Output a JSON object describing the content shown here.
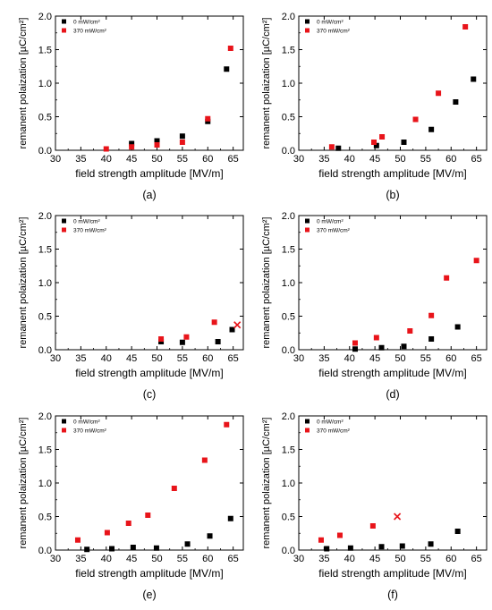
{
  "figure": {
    "panel_labels": [
      "(a)",
      "(b)",
      "(c)",
      "(d)",
      "(e)",
      "(f)"
    ]
  },
  "colors": {
    "series_0": "#000000",
    "series_370": "#e8141a"
  },
  "chart_data": [
    {
      "type": "scatter",
      "panel": "(a)",
      "xlabel": "field strength amplitude [MV/m]",
      "ylabel": "remanent polaization [µC/cm²]",
      "xlim": [
        30,
        67
      ],
      "ylim": [
        0,
        2.0
      ],
      "xticks": [
        "30",
        "35",
        "40",
        "45",
        "50",
        "55",
        "60",
        "65"
      ],
      "yticks": [
        "0.0",
        "0.5",
        "1.0",
        "1.5",
        "2.0"
      ],
      "grid": false,
      "legend_position": "top-left",
      "series": [
        {
          "name": "0 mW/cm²",
          "color": "#000000",
          "marker": "square",
          "points": [
            [
              45,
              0.1
            ],
            [
              50,
              0.14
            ],
            [
              55,
              0.21
            ],
            [
              60,
              0.43
            ],
            [
              63.7,
              1.21
            ]
          ]
        },
        {
          "name": "370 mW/cm²",
          "color": "#e8141a",
          "marker": "square",
          "points": [
            [
              40,
              0.02
            ],
            [
              45,
              0.05
            ],
            [
              50,
              0.08
            ],
            [
              55,
              0.12
            ],
            [
              60,
              0.47
            ],
            [
              64.5,
              1.52
            ]
          ]
        }
      ],
      "annotations": []
    },
    {
      "type": "scatter",
      "panel": "(b)",
      "xlabel": "field strength amplitude [MV/m]",
      "ylabel": "remanent polaization [µC/cm²]",
      "xlim": [
        30,
        67
      ],
      "ylim": [
        0,
        2.0
      ],
      "xticks": [
        "30",
        "35",
        "40",
        "45",
        "50",
        "55",
        "60",
        "65"
      ],
      "yticks": [
        "0.0",
        "0.5",
        "1.0",
        "1.5",
        "2.0"
      ],
      "grid": false,
      "legend_position": "top-left",
      "series": [
        {
          "name": "0 mW/cm²",
          "color": "#000000",
          "marker": "square",
          "points": [
            [
              37.8,
              0.03
            ],
            [
              45.3,
              0.07
            ],
            [
              50.7,
              0.12
            ],
            [
              56.1,
              0.31
            ],
            [
              60.9,
              0.72
            ],
            [
              64.4,
              1.06
            ]
          ]
        },
        {
          "name": "370 mW/cm²",
          "color": "#e8141a",
          "marker": "square",
          "points": [
            [
              36.5,
              0.05
            ],
            [
              44.8,
              0.12
            ],
            [
              46.4,
              0.2
            ],
            [
              53,
              0.46
            ],
            [
              57.5,
              0.85
            ],
            [
              62.8,
              1.84
            ]
          ]
        }
      ],
      "annotations": []
    },
    {
      "type": "scatter",
      "panel": "(c)",
      "xlabel": "field strength amplitude [MV/m]",
      "ylabel": "remanent polaization [µC/cm²]",
      "xlim": [
        30,
        67
      ],
      "ylim": [
        0,
        2.0
      ],
      "xticks": [
        "30",
        "35",
        "40",
        "45",
        "50",
        "55",
        "60",
        "65"
      ],
      "yticks": [
        "0.0",
        "0.5",
        "1.0",
        "1.5",
        "2.0"
      ],
      "grid": false,
      "legend_position": "top-left",
      "series": [
        {
          "name": "0 mW/cm²",
          "color": "#000000",
          "marker": "square",
          "points": [
            [
              50.8,
              0.12
            ],
            [
              55.0,
              0.11
            ],
            [
              62.0,
              0.12
            ],
            [
              64.8,
              0.3
            ]
          ]
        },
        {
          "name": "370 mW/cm²",
          "color": "#e8141a",
          "marker": "square",
          "points": [
            [
              50.8,
              0.16
            ],
            [
              55.8,
              0.19
            ],
            [
              61.3,
              0.41
            ]
          ]
        }
      ],
      "annotations": [
        {
          "marker": "cross",
          "color": "#e8141a",
          "point": [
            65.8,
            0.37
          ]
        }
      ]
    },
    {
      "type": "scatter",
      "panel": "(d)",
      "xlabel": "field strength amplitude [MV/m]",
      "ylabel": "remanent polaization [µC/cm²]",
      "xlim": [
        30,
        67
      ],
      "ylim": [
        0,
        2.0
      ],
      "xticks": [
        "30",
        "35",
        "40",
        "45",
        "50",
        "55",
        "60",
        "65"
      ],
      "yticks": [
        "0.0",
        "0.5",
        "1.0",
        "1.5",
        "2.0"
      ],
      "grid": false,
      "legend_position": "top-left",
      "series": [
        {
          "name": "0 mW/cm²",
          "color": "#000000",
          "marker": "square",
          "points": [
            [
              41.1,
              0.01
            ],
            [
              46.3,
              0.03
            ],
            [
              50.7,
              0.05
            ],
            [
              56.1,
              0.16
            ],
            [
              61.3,
              0.34
            ]
          ]
        },
        {
          "name": "370 mW/cm²",
          "color": "#e8141a",
          "marker": "square",
          "points": [
            [
              41.1,
              0.1
            ],
            [
              45.3,
              0.18
            ],
            [
              51.9,
              0.28
            ],
            [
              56.1,
              0.51
            ],
            [
              59.1,
              1.07
            ],
            [
              65,
              1.33
            ]
          ]
        }
      ],
      "annotations": []
    },
    {
      "type": "scatter",
      "panel": "(e)",
      "xlabel": "field strength amplitude [MV/m]",
      "ylabel": "remanent polaization [µC/cm²]",
      "xlim": [
        30,
        67
      ],
      "ylim": [
        0,
        2.0
      ],
      "xticks": [
        "30",
        "35",
        "40",
        "45",
        "50",
        "55",
        "60",
        "65"
      ],
      "yticks": [
        "0.0",
        "0.5",
        "1.0",
        "1.5",
        "2.0"
      ],
      "grid": false,
      "legend_position": "top-left",
      "series": [
        {
          "name": "0 mW/cm²",
          "color": "#000000",
          "marker": "square",
          "points": [
            [
              36.2,
              0.01
            ],
            [
              41.1,
              0.02
            ],
            [
              45.3,
              0.04
            ],
            [
              49.9,
              0.03
            ],
            [
              56,
              0.09
            ],
            [
              60.4,
              0.21
            ],
            [
              64.5,
              0.47
            ]
          ]
        },
        {
          "name": "370 mW/cm²",
          "color": "#e8141a",
          "marker": "square",
          "points": [
            [
              34.4,
              0.15
            ],
            [
              40.2,
              0.26
            ],
            [
              44.4,
              0.4
            ],
            [
              48.2,
              0.52
            ],
            [
              53.4,
              0.92
            ],
            [
              59.4,
              1.34
            ],
            [
              63.7,
              1.87
            ]
          ]
        }
      ],
      "annotations": []
    },
    {
      "type": "scatter",
      "panel": "(f)",
      "xlabel": "field strength amplitude [MV/m]",
      "ylabel": "remanent polaization [µC/cm²]",
      "xlim": [
        30,
        67
      ],
      "ylim": [
        0,
        2.0
      ],
      "xticks": [
        "30",
        "35",
        "40",
        "45",
        "50",
        "55",
        "60",
        "65"
      ],
      "yticks": [
        "0.0",
        "0.5",
        "1.0",
        "1.5",
        "2.0"
      ],
      "grid": false,
      "legend_position": "top-left",
      "series": [
        {
          "name": "0 mW/cm²",
          "color": "#000000",
          "marker": "square",
          "points": [
            [
              35.5,
              0.02
            ],
            [
              40.2,
              0.03
            ],
            [
              46.3,
              0.05
            ],
            [
              50.4,
              0.06
            ],
            [
              56,
              0.09
            ],
            [
              61.3,
              0.28
            ]
          ]
        },
        {
          "name": "370 mW/cm²",
          "color": "#e8141a",
          "marker": "square",
          "points": [
            [
              34.4,
              0.15
            ],
            [
              38.1,
              0.22
            ],
            [
              44.6,
              0.36
            ]
          ]
        }
      ],
      "annotations": [
        {
          "marker": "cross",
          "color": "#e8141a",
          "point": [
            49.4,
            0.5
          ]
        }
      ]
    }
  ]
}
